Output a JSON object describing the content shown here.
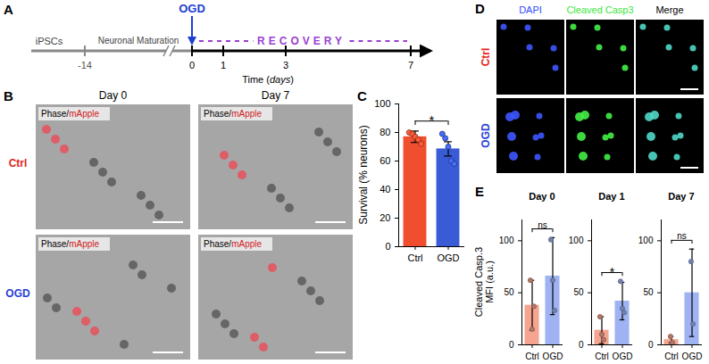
{
  "diagram": {
    "A": {
      "panel_label": "A",
      "stages": [
        "iPSCs",
        "Neuronal Maturation"
      ],
      "event": "OGD",
      "phase": "RECOVERY",
      "axis_title": "Time (days)",
      "ticks": [
        -14,
        0,
        1,
        3,
        7
      ]
    },
    "B": {
      "panel_label": "B",
      "columns": [
        "Day 0",
        "Day 7"
      ],
      "rows": [
        "Ctrl",
        "OGD"
      ],
      "image_label": "Phase/mApple"
    },
    "D": {
      "panel_label": "D",
      "columns": [
        "DAPI",
        "Cleaved Casp3",
        "Merge"
      ],
      "rows": [
        "Ctrl",
        "OGD"
      ]
    }
  },
  "chart_data": [
    {
      "type": "bar",
      "panel_label": "C",
      "y_label": "Survival (% neurons)",
      "categories": [
        "Ctrl",
        "OGD"
      ],
      "values": [
        77,
        68.5
      ],
      "errors": [
        4,
        5
      ],
      "points": [
        [
          80,
          79,
          77,
          75,
          72
        ],
        [
          79,
          76,
          70,
          60,
          58
        ]
      ],
      "colors": [
        "#f04e2f",
        "#3a5bd6"
      ],
      "ylim": [
        0,
        100
      ],
      "yticks": [
        0,
        20,
        40,
        60,
        80,
        100
      ],
      "annotations": [
        {
          "text": "*",
          "from": "Ctrl",
          "to": "OGD"
        }
      ]
    },
    {
      "type": "bar",
      "panel_label": "E",
      "title": "Day 0",
      "y_label": "Cleaved Casp.3 MFI (a.u.)",
      "categories": [
        "Ctrl",
        "OGD"
      ],
      "values": [
        38,
        66
      ],
      "errors": [
        24,
        37
      ],
      "points": [
        [
          62,
          15,
          37
        ],
        [
          101,
          62,
          33
        ]
      ],
      "colors": [
        "#f4a48f",
        "#9fb3f2"
      ],
      "ylim": [
        0,
        120
      ],
      "yticks": [
        0,
        50,
        100
      ],
      "annotations": [
        {
          "text": "ns",
          "from": "Ctrl",
          "to": "OGD"
        }
      ]
    },
    {
      "type": "bar",
      "title": "Day 1",
      "categories": [
        "Ctrl",
        "OGD"
      ],
      "values": [
        14,
        42
      ],
      "errors": [
        13,
        18
      ],
      "points": [
        [
          27,
          10,
          5
        ],
        [
          61,
          35,
          31
        ]
      ],
      "colors": [
        "#f4a48f",
        "#9fb3f2"
      ],
      "ylim": [
        0,
        120
      ],
      "yticks": [
        0,
        50,
        100
      ],
      "annotations": [
        {
          "text": "*",
          "from": "Ctrl",
          "to": "OGD"
        }
      ]
    },
    {
      "type": "bar",
      "title": "Day 7",
      "categories": [
        "Ctrl",
        "OGD"
      ],
      "values": [
        5,
        50
      ],
      "errors": [
        3,
        42
      ],
      "points": [
        [
          8,
          2
        ],
        [
          80,
          20
        ]
      ],
      "colors": [
        "#f4a48f",
        "#9fb3f2"
      ],
      "ylim": [
        0,
        120
      ],
      "yticks": [
        0,
        50,
        100
      ],
      "annotations": [
        {
          "text": "ns",
          "from": "Ctrl",
          "to": "OGD"
        }
      ]
    }
  ]
}
